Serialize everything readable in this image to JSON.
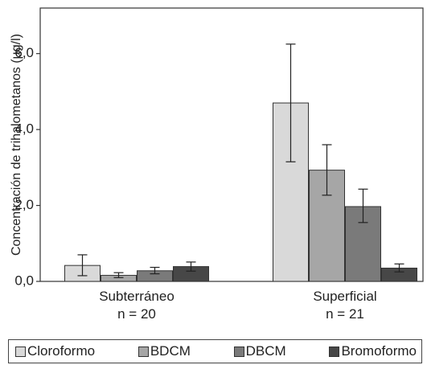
{
  "chart_data": {
    "type": "bar",
    "ylabel": "Concentración de trihalometanos (µg/l)",
    "ylim": [
      0,
      7.2
    ],
    "yticks": [
      0,
      2,
      4,
      6
    ],
    "ytick_labels": [
      "0,0",
      "2,0",
      "4,0",
      "6,0"
    ],
    "categories": [
      {
        "name": "Subterráneo",
        "sub": "n = 20"
      },
      {
        "name": "Superficial",
        "sub": "n = 21"
      }
    ],
    "series": [
      {
        "name": "Cloroformo",
        "color": "#d9d9d9",
        "values": [
          0.42,
          4.7
        ],
        "err_low": [
          0.15,
          3.15
        ],
        "err_high": [
          0.7,
          6.25
        ]
      },
      {
        "name": "BDCM",
        "color": "#a6a6a6",
        "values": [
          0.16,
          2.93
        ],
        "err_low": [
          0.1,
          2.27
        ],
        "err_high": [
          0.23,
          3.6
        ]
      },
      {
        "name": "DBCM",
        "color": "#7a7a7a",
        "values": [
          0.28,
          1.97
        ],
        "err_low": [
          0.2,
          1.55
        ],
        "err_high": [
          0.37,
          2.43
        ]
      },
      {
        "name": "Bromoformo",
        "color": "#474747",
        "values": [
          0.39,
          0.35
        ],
        "err_low": [
          0.27,
          0.25
        ],
        "err_high": [
          0.51,
          0.46
        ]
      }
    ],
    "grid": false,
    "legend": "bottom"
  }
}
